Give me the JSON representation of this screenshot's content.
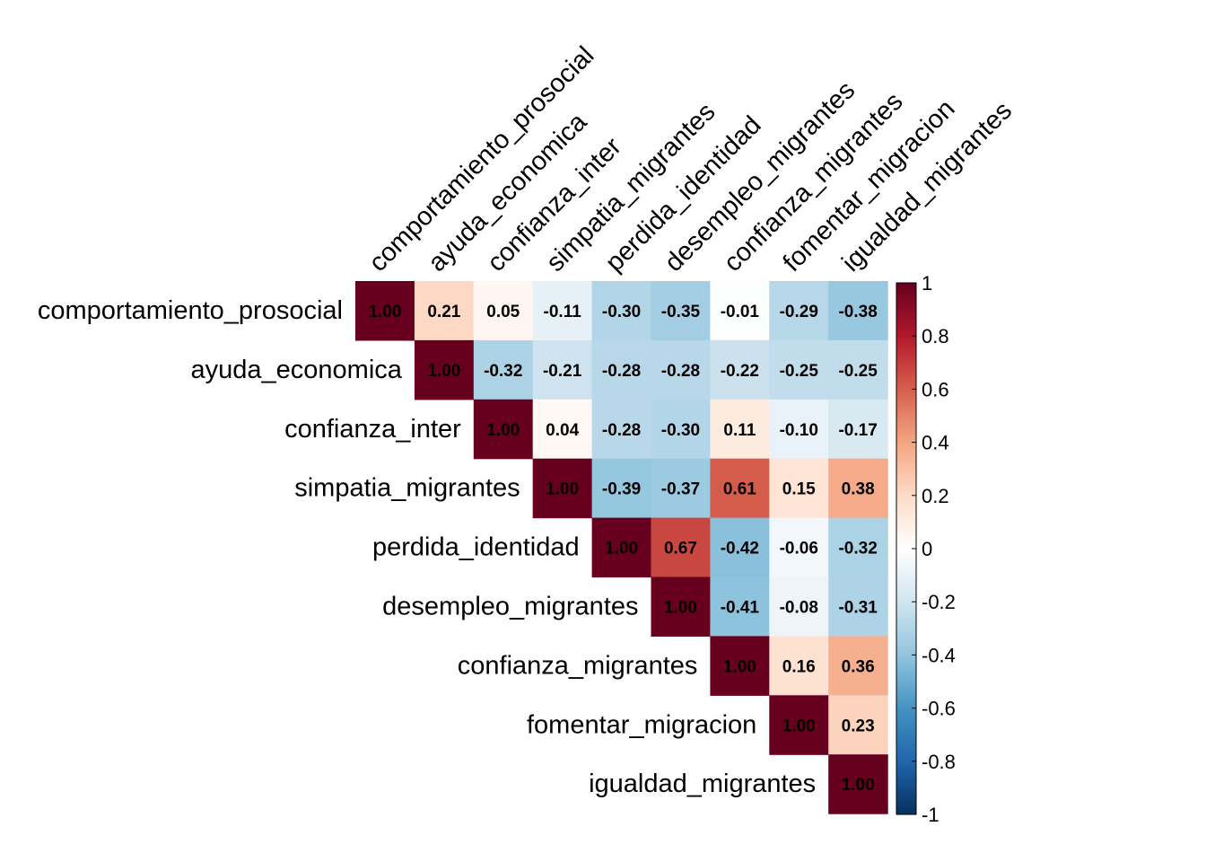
{
  "chart_data": {
    "type": "heatmap",
    "subtype": "correlation-matrix-upper",
    "variables": [
      "comportamiento_prosocial",
      "ayuda_economica",
      "confianza_inter",
      "simpatia_migrantes",
      "perdida_identidad",
      "desempleo_migrantes",
      "confianza_migrantes",
      "fomentar_migracion",
      "igualdad_migrantes"
    ],
    "matrix": [
      [
        1.0,
        0.21,
        0.05,
        -0.11,
        -0.3,
        -0.35,
        -0.01,
        -0.29,
        -0.38
      ],
      [
        null,
        1.0,
        -0.32,
        -0.21,
        -0.28,
        -0.28,
        -0.22,
        -0.25,
        -0.25
      ],
      [
        null,
        null,
        1.0,
        0.04,
        -0.28,
        -0.3,
        0.11,
        -0.1,
        -0.17
      ],
      [
        null,
        null,
        null,
        1.0,
        -0.39,
        -0.37,
        0.61,
        0.15,
        0.38
      ],
      [
        null,
        null,
        null,
        null,
        1.0,
        0.67,
        -0.42,
        -0.06,
        -0.32
      ],
      [
        null,
        null,
        null,
        null,
        null,
        1.0,
        -0.41,
        -0.08,
        -0.31
      ],
      [
        null,
        null,
        null,
        null,
        null,
        null,
        1.0,
        0.16,
        0.36
      ],
      [
        null,
        null,
        null,
        null,
        null,
        null,
        null,
        1.0,
        0.23
      ],
      [
        null,
        null,
        null,
        null,
        null,
        null,
        null,
        null,
        1.0
      ]
    ],
    "colorbar": {
      "range": [
        -1,
        1
      ],
      "tick_labels": [
        "1",
        "0.8",
        "0.6",
        "0.4",
        "0.2",
        "0",
        "-0.2",
        "-0.4",
        "-0.6",
        "-0.8",
        "-1"
      ],
      "palette": [
        "#67001F",
        "#B2182B",
        "#D6604D",
        "#F4A582",
        "#FDDBC7",
        "#FFFFFF",
        "#D1E5F0",
        "#92C5DE",
        "#4393C3",
        "#2166AC",
        "#053061"
      ]
    },
    "legend_position": "right",
    "grid": false
  }
}
